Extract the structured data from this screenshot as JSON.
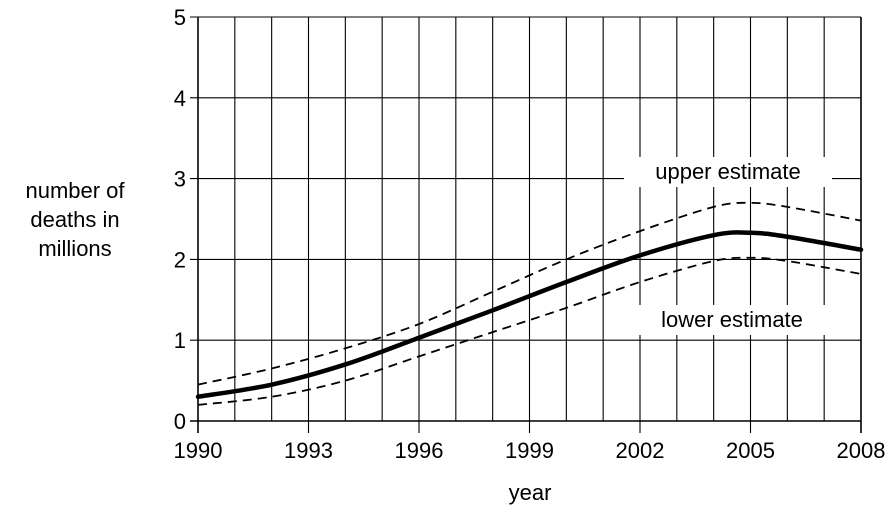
{
  "chart_data": {
    "type": "line",
    "xlabel": "year",
    "ylabel": [
      "number of",
      "deaths in",
      "millions"
    ],
    "xlim": [
      1990,
      2008
    ],
    "ylim": [
      0,
      5
    ],
    "x_ticks": [
      "1990",
      "1993",
      "1996",
      "1999",
      "2002",
      "2005",
      "2008"
    ],
    "y_ticks": [
      "0",
      "1",
      "2",
      "3",
      "4",
      "5"
    ],
    "grid": true,
    "series": [
      {
        "name": "upper estimate",
        "style": "dashed",
        "x": [
          1990,
          1992,
          1994,
          1996,
          1998,
          2000,
          2002,
          2004,
          2005,
          2006,
          2008
        ],
        "y": [
          0.45,
          0.65,
          0.9,
          1.2,
          1.6,
          2.0,
          2.35,
          2.65,
          2.7,
          2.65,
          2.48
        ]
      },
      {
        "style": "solid-thick",
        "x": [
          1990,
          1992,
          1994,
          1996,
          1998,
          2000,
          2002,
          2004,
          2005,
          2006,
          2008
        ],
        "y": [
          0.3,
          0.45,
          0.7,
          1.03,
          1.37,
          1.72,
          2.05,
          2.3,
          2.33,
          2.28,
          2.12
        ]
      },
      {
        "name": "lower estimate",
        "style": "dashed",
        "x": [
          1990,
          1992,
          1994,
          1996,
          1998,
          2000,
          2002,
          2004,
          2005,
          2006,
          2008
        ],
        "y": [
          0.2,
          0.3,
          0.5,
          0.8,
          1.1,
          1.4,
          1.72,
          1.98,
          2.02,
          1.98,
          1.82
        ]
      }
    ],
    "annotations": [
      "upper estimate",
      "lower estimate"
    ],
    "colors": {
      "line": "#000000",
      "grid": "#000000",
      "background": "#ffffff"
    }
  }
}
